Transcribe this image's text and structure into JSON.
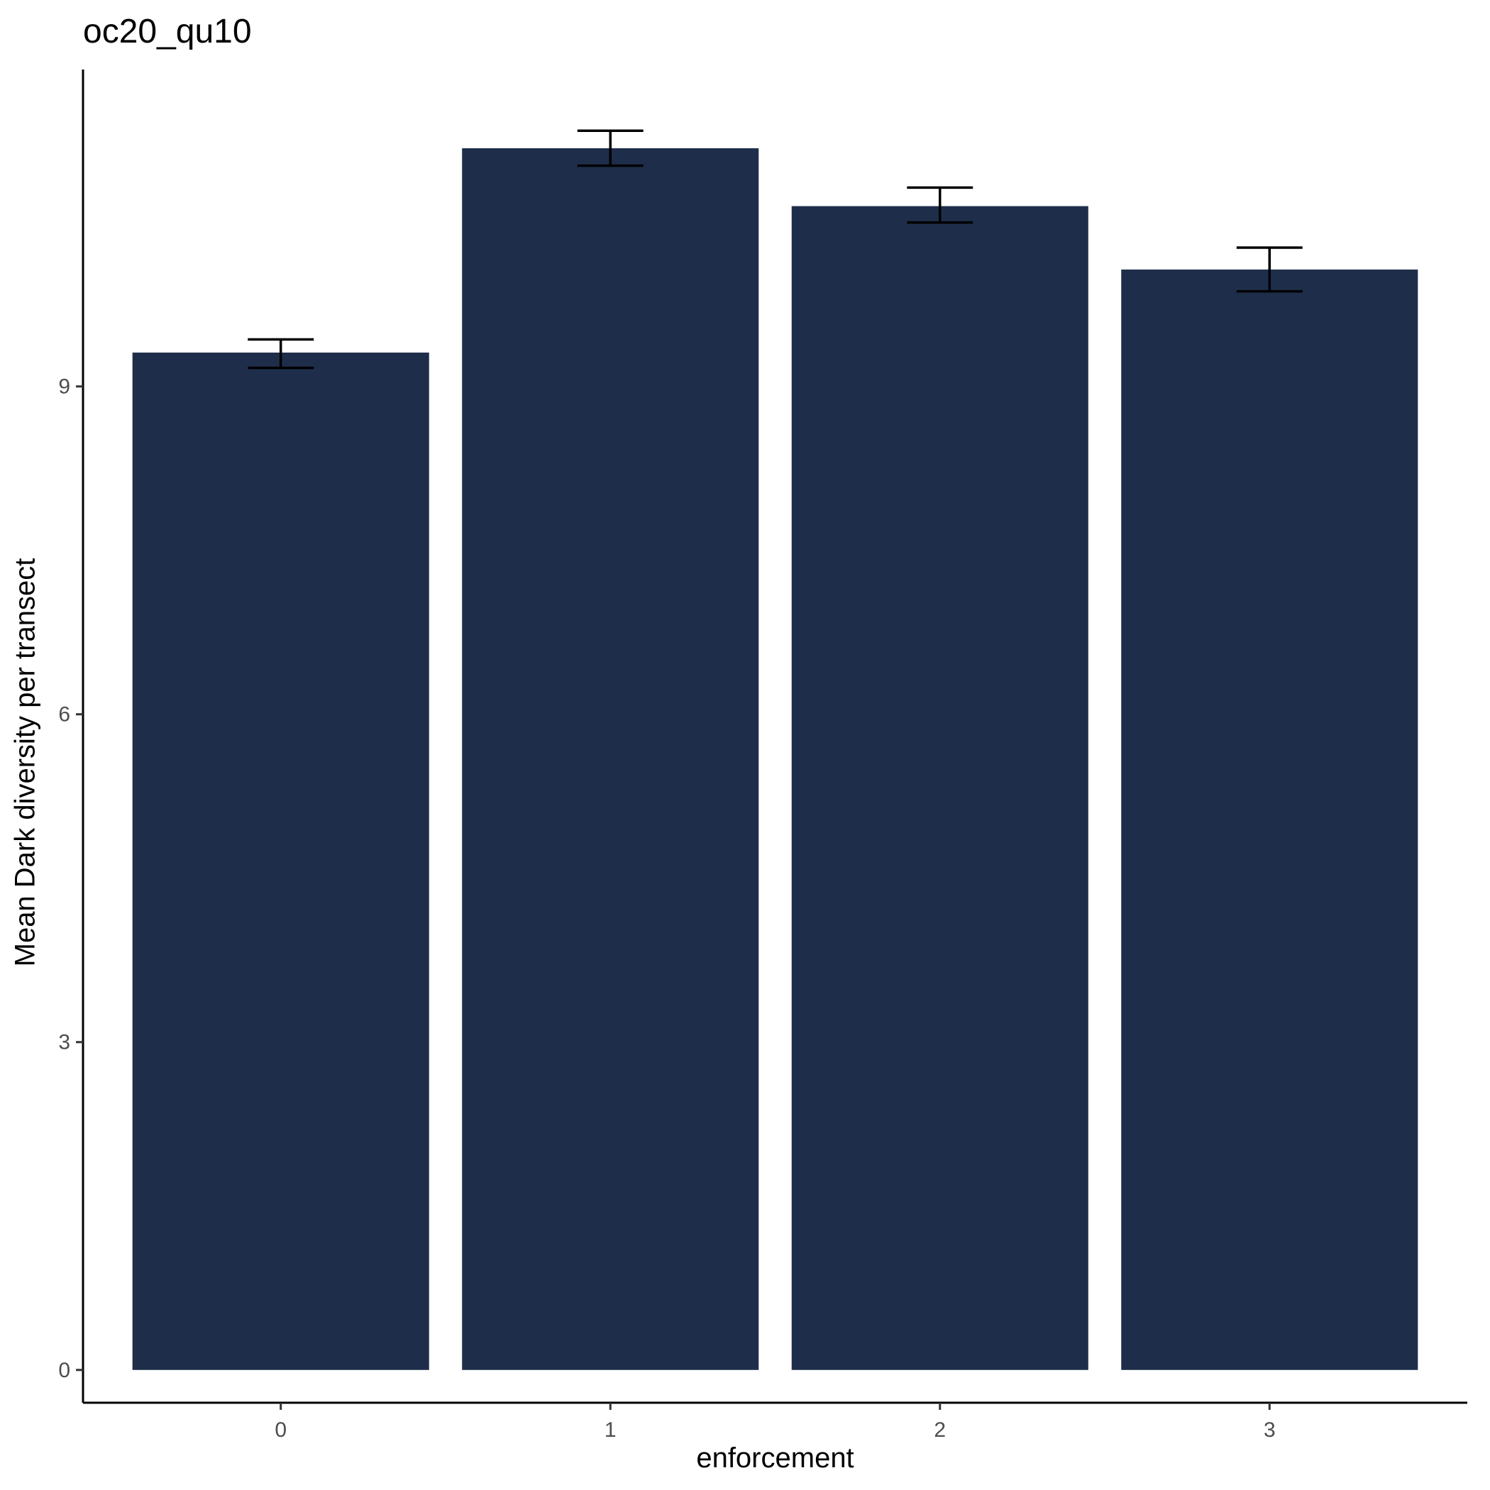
{
  "chart_data": {
    "type": "bar",
    "title": "oc20_qu10",
    "xlabel": "enforcement",
    "ylabel": "Mean Dark diversity per transect",
    "categories": [
      "0",
      "1",
      "2",
      "3"
    ],
    "values": [
      9.31,
      11.18,
      10.65,
      10.07
    ],
    "error_low": [
      9.17,
      11.02,
      10.5,
      9.87
    ],
    "error_high": [
      9.43,
      11.34,
      10.82,
      10.27
    ],
    "yticks": [
      0,
      3,
      6,
      9
    ],
    "ylim": [
      -0.3,
      11.9
    ],
    "grid": false,
    "legend": "none",
    "bar_color": "#1e2e4a",
    "errorbar_color": "#000000"
  }
}
